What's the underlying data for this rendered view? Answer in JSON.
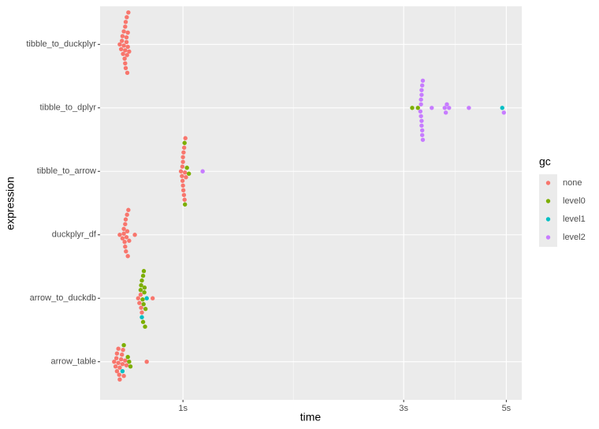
{
  "chart_data": {
    "type": "scatter",
    "xlabel": "time",
    "ylabel": "expression",
    "log_x": true,
    "xlim": [
      0.662,
      5.4
    ],
    "xticks": [
      {
        "value": 1,
        "label": "1s"
      },
      {
        "value": 3,
        "label": "3s"
      },
      {
        "value": 5,
        "label": "5s"
      }
    ],
    "xminor": [
      1.732,
      3.873
    ],
    "categories": [
      "tibble_to_duckplyr",
      "tibble_to_dplyr",
      "tibble_to_arrow",
      "duckplyr_df",
      "arrow_to_duckdb",
      "arrow_table"
    ],
    "grid": true,
    "legend_title": "gc",
    "legend": "right",
    "series": [
      {
        "name": "none",
        "color": "#F8766D",
        "x": [
          0.73,
          0.735,
          0.74,
          0.745,
          0.75,
          0.75,
          0.752,
          0.755,
          0.755,
          0.757,
          0.758,
          0.76,
          0.76,
          0.762,
          0.765,
          0.745,
          0.748,
          0.742,
          0.738,
          0.752,
          0.756,
          0.75,
          0.99,
          0.995,
          0.998,
          1.0,
          1.0,
          1.002,
          1.005,
          1.008,
          1.01,
          1.0,
          0.997,
          1.003,
          1.006,
          1.012,
          1.015,
          0.73,
          0.74,
          0.745,
          0.75,
          0.752,
          0.755,
          0.757,
          0.76,
          0.762,
          0.765,
          0.748,
          0.753,
          0.758,
          0.75,
          0.745,
          0.787,
          0.8,
          0.805,
          0.81,
          0.812,
          0.815,
          0.86,
          0.71,
          0.715,
          0.72,
          0.725,
          0.73,
          0.735,
          0.74,
          0.745,
          0.75,
          0.72,
          0.725,
          0.73,
          0.718,
          0.728,
          0.738,
          0.742,
          0.835,
          0.755
        ],
        "values": [
          "tibble_to_duckplyr",
          "tibble_to_duckplyr",
          "tibble_to_duckplyr",
          "tibble_to_duckplyr",
          "tibble_to_duckplyr",
          "tibble_to_duckplyr",
          "tibble_to_duckplyr",
          "tibble_to_duckplyr",
          "tibble_to_duckplyr",
          "tibble_to_duckplyr",
          "tibble_to_duckplyr",
          "tibble_to_duckplyr",
          "tibble_to_duckplyr",
          "tibble_to_duckplyr",
          "tibble_to_duckplyr",
          "tibble_to_duckplyr",
          "tibble_to_duckplyr",
          "tibble_to_duckplyr",
          "tibble_to_duckplyr",
          "tibble_to_duckplyr",
          "tibble_to_duckplyr",
          "tibble_to_duckplyr",
          "tibble_to_arrow",
          "tibble_to_arrow",
          "tibble_to_arrow",
          "tibble_to_arrow",
          "tibble_to_arrow",
          "tibble_to_arrow",
          "tibble_to_arrow",
          "tibble_to_arrow",
          "tibble_to_arrow",
          "tibble_to_arrow",
          "tibble_to_arrow",
          "tibble_to_arrow",
          "tibble_to_arrow",
          "tibble_to_arrow",
          "tibble_to_arrow",
          "duckplyr_df",
          "duckplyr_df",
          "duckplyr_df",
          "duckplyr_df",
          "duckplyr_df",
          "duckplyr_df",
          "duckplyr_df",
          "duckplyr_df",
          "duckplyr_df",
          "duckplyr_df",
          "duckplyr_df",
          "duckplyr_df",
          "duckplyr_df",
          "duckplyr_df",
          "duckplyr_df",
          "duckplyr_df",
          "arrow_to_duckdb",
          "arrow_to_duckdb",
          "arrow_to_duckdb",
          "arrow_to_duckdb",
          "arrow_to_duckdb",
          "arrow_to_duckdb",
          "arrow_table",
          "arrow_table",
          "arrow_table",
          "arrow_table",
          "arrow_table",
          "arrow_table",
          "arrow_table",
          "arrow_table",
          "arrow_table",
          "arrow_table",
          "arrow_table",
          "arrow_table",
          "arrow_table",
          "arrow_table",
          "arrow_table",
          "arrow_table",
          "arrow_table",
          "arrow_table"
        ]
      },
      {
        "name": "level0",
        "color": "#7CAE00",
        "x": [
          3.13,
          3.22,
          1.01,
          1.02,
          1.03,
          1.008,
          0.81,
          0.815,
          0.82,
          0.82,
          0.822,
          0.825,
          0.818,
          0.812,
          0.823,
          0.826,
          0.83,
          0.828,
          0.76,
          0.765,
          0.77,
          0.745
        ],
        "values": [
          "tibble_to_dplyr",
          "tibble_to_dplyr",
          "tibble_to_arrow",
          "tibble_to_arrow",
          "tibble_to_arrow",
          "tibble_to_arrow",
          "arrow_to_duckdb",
          "arrow_to_duckdb",
          "arrow_to_duckdb",
          "arrow_to_duckdb",
          "arrow_to_duckdb",
          "arrow_to_duckdb",
          "arrow_to_duckdb",
          "arrow_to_duckdb",
          "arrow_to_duckdb",
          "arrow_to_duckdb",
          "arrow_to_duckdb",
          "arrow_to_duckdb",
          "arrow_table",
          "arrow_table",
          "arrow_table",
          "arrow_table"
        ]
      },
      {
        "name": "level1",
        "color": "#00BFC4",
        "x": [
          4.9,
          0.835,
          0.815,
          0.74
        ],
        "values": [
          "tibble_to_dplyr",
          "arrow_to_duckdb",
          "arrow_to_duckdb",
          "arrow_table"
        ]
      },
      {
        "name": "level2",
        "color": "#C77CFF",
        "x": [
          3.26,
          3.27,
          3.28,
          3.28,
          3.29,
          3.29,
          3.3,
          3.27,
          3.28,
          3.29,
          3.3,
          3.28,
          3.27,
          3.45,
          3.68,
          3.7,
          3.72,
          3.76,
          4.15,
          4.94,
          1.103
        ],
        "values": [
          "tibble_to_dplyr",
          "tibble_to_dplyr",
          "tibble_to_dplyr",
          "tibble_to_dplyr",
          "tibble_to_dplyr",
          "tibble_to_dplyr",
          "tibble_to_dplyr",
          "tibble_to_dplyr",
          "tibble_to_dplyr",
          "tibble_to_dplyr",
          "tibble_to_dplyr",
          "tibble_to_dplyr",
          "tibble_to_dplyr",
          "tibble_to_dplyr",
          "tibble_to_dplyr",
          "tibble_to_dplyr",
          "tibble_to_dplyr",
          "tibble_to_dplyr",
          "tibble_to_dplyr",
          "tibble_to_dplyr",
          "tibble_to_arrow"
        ]
      }
    ]
  }
}
